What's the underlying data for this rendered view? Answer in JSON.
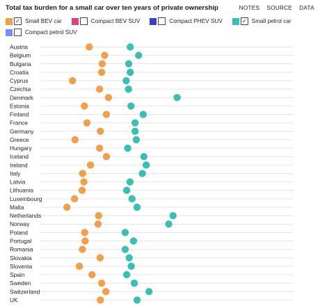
{
  "title": "Total tax burden for a small car over ten years of private ownership",
  "nav": {
    "notes": "NOTES",
    "source": "SOURCE",
    "data": "DATA"
  },
  "legend": [
    {
      "name": "Small BEV car",
      "color": "#f0a04b",
      "checked": true,
      "check_mark": "✓"
    },
    {
      "name": "Compact BEV SUV",
      "color": "#e0407a",
      "checked": false,
      "check_mark": ""
    },
    {
      "name": "Compact PHEV SUV",
      "color": "#3b3fc4",
      "checked": false,
      "check_mark": ""
    },
    {
      "name": "Small petrol car",
      "color": "#3bbfb4",
      "checked": true,
      "check_mark": "✓"
    },
    {
      "name": "Compact petrol SUV",
      "color": "#7b8cf5",
      "checked": false,
      "check_mark": ""
    }
  ],
  "chart_data": {
    "type": "scatter",
    "title": "Total tax burden for a small car over ten years of private ownership",
    "xlabel": "",
    "ylabel": "",
    "x_axis_labels_visible": false,
    "xlim": [
      0,
      100
    ],
    "grid": true,
    "legend_position": "top-left",
    "categories": [
      "Austria",
      "Belgium",
      "Bulgaria",
      "Croatia",
      "Cyprus",
      "Czechia",
      "Denmark",
      "Estonia",
      "Finland",
      "France",
      "Germany",
      "Greece",
      "Hungary",
      "Iceland",
      "Ireland",
      "Italy",
      "Latvia",
      "Lithuania",
      "Luxembourg",
      "Malta",
      "Netherlands",
      "Norway",
      "Poland",
      "Portugal",
      "Romania",
      "Slovakia",
      "Slovenia",
      "Spain",
      "Sweden",
      "Switzerland",
      "UK"
    ],
    "series": [
      {
        "name": "Small BEV car",
        "color": "#f0a04b",
        "values": [
          19.3,
          25.4,
          24.4,
          24.2,
          12.7,
          23.4,
          26.9,
          17.4,
          26.1,
          18.4,
          23.7,
          13.7,
          23.4,
          26.1,
          19.8,
          16.7,
          17.2,
          16.5,
          13.5,
          10.5,
          23.0,
          22.8,
          17.5,
          17.7,
          16.6,
          23.6,
          15.4,
          20.4,
          24.2,
          25.9,
          23.7
        ]
      },
      {
        "name": "Small petrol car",
        "color": "#3bbfb4",
        "values": [
          35.5,
          38.8,
          34.9,
          35.5,
          33.9,
          34.8,
          54.0,
          35.8,
          40.6,
          37.4,
          37.4,
          37.9,
          34.5,
          40.9,
          41.8,
          40.3,
          35.4,
          34.1,
          36.2,
          38.2,
          52.4,
          50.7,
          33.5,
          36.8,
          33.5,
          35.1,
          35.9,
          34.1,
          37.1,
          42.9,
          38.2
        ]
      }
    ]
  }
}
